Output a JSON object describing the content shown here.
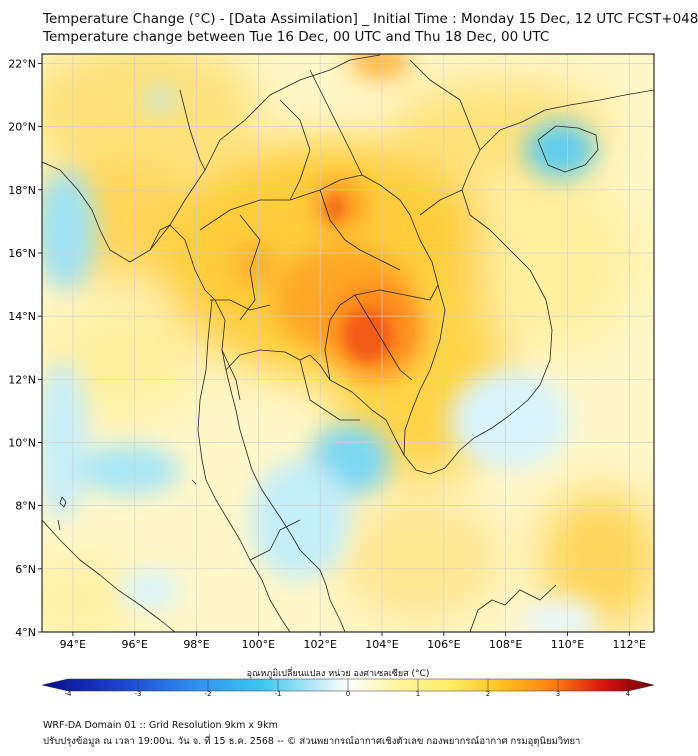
{
  "title_line1": "Temperature Change (°C) - [Data Assimilation] _ Initial Time : Monday 15 Dec, 12 UTC FCST+048",
  "title_line2": "Temperature change between Tue 16 Dec, 00 UTC and Thu 18 Dec, 00 UTC",
  "lat_labels": [
    "22°N",
    "20°N",
    "18°N",
    "16°N",
    "14°N",
    "12°N",
    "10°N",
    "8°N",
    "6°N",
    "4°N"
  ],
  "lon_labels": [
    "94°E",
    "96°E",
    "98°E",
    "100°E",
    "102°E",
    "104°E",
    "106°E",
    "108°E",
    "110°E",
    "112°E"
  ],
  "colorbar_label": "อุณหภูมิเปลี่ยนแปลง หน่วย องศาเซลเซียส (°C)",
  "colorbar_ticks": [
    "-4",
    "-3",
    "-2",
    "-1",
    "0",
    "1",
    "2",
    "3",
    "4"
  ],
  "colors": {
    "cold_extreme": "#0a0a8c",
    "cold": "#2f6fe0",
    "cool": "#3cc8f0",
    "neutral": "#ffffff",
    "warm_light": "#fff06a",
    "warm": "#ffc21f",
    "hot": "#ff7a12",
    "hot_extreme": "#d81010",
    "hottest": "#6b0000",
    "coastline": "#222222",
    "grid": "#cfcfcf"
  },
  "footer_line1": "WRF-DA Domain 01 :: Grid Resolution 9km x 9km",
  "footer_line2": "ปรับปรุงข้อมูล ณ เวลา 19:00น. วัน จ. ที่ 15 ธ.ค. 2568 -- © ส่วนพยากรณ์อากาศเชิงตัวเลข กองพยากรณ์อากาศ กรมอุตุนิยมวิทยา"
}
